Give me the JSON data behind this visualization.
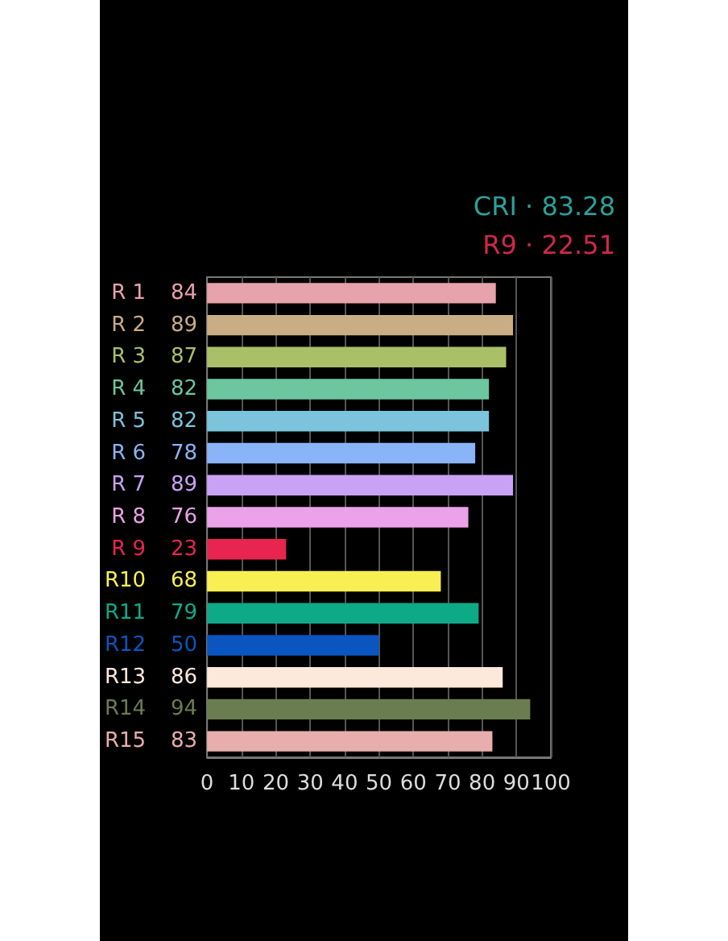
{
  "chart_data": {
    "type": "bar",
    "orientation": "horizontal",
    "categories": [
      "R 1",
      "R 2",
      "R 3",
      "R 4",
      "R 5",
      "R 6",
      "R 7",
      "R 8",
      "R 9",
      "R10",
      "R11",
      "R12",
      "R13",
      "R14",
      "R15"
    ],
    "values": [
      84,
      89,
      87,
      82,
      82,
      78,
      89,
      76,
      23,
      68,
      79,
      50,
      86,
      94,
      83
    ],
    "colors": [
      "#e8a2ac",
      "#c9ad85",
      "#a9c068",
      "#6cc69e",
      "#7cc3dc",
      "#8ab4f8",
      "#c9a2f5",
      "#eba2e8",
      "#e8254e",
      "#f8ef52",
      "#0eaa88",
      "#0a55c0",
      "#fde8dc",
      "#6a7d50",
      "#e8aeac"
    ],
    "xlim": [
      0,
      100
    ],
    "xticks": [
      0,
      10,
      20,
      30,
      40,
      50,
      60,
      70,
      80,
      90,
      100
    ],
    "grid": "x",
    "data_labels": true,
    "annotations": [
      "CRI · 83.28",
      "R9 · 22.51"
    ]
  }
}
